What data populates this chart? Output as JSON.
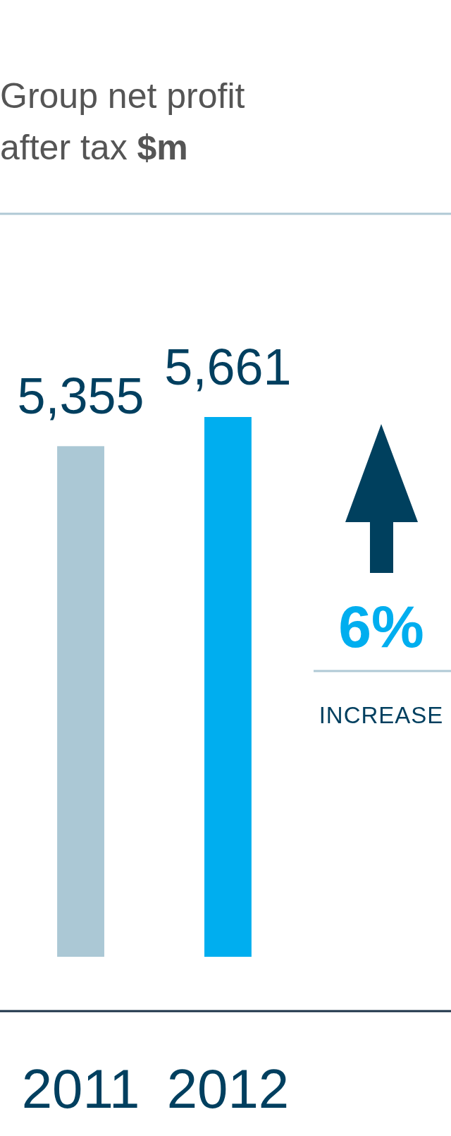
{
  "chart_data": {
    "type": "bar",
    "title": "Group net profit after tax $m",
    "categories": [
      "2011",
      "2012"
    ],
    "values": [
      5355,
      5661
    ],
    "colors": [
      "#abc8d5",
      "#00aeef"
    ],
    "value_labels": [
      "5,355",
      "5,661"
    ],
    "annotations": [
      "6%",
      "INCREASE"
    ]
  }
}
